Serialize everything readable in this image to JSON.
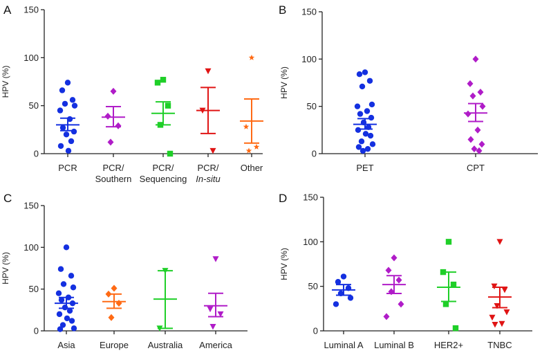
{
  "chart_data": [
    {
      "panel": "A",
      "type": "scatter",
      "ylabel": "HPV (%)",
      "ylim": [
        0,
        150
      ],
      "yticks": [
        0,
        50,
        100,
        150
      ],
      "groups": [
        {
          "label": [
            "PCR"
          ],
          "color": "#1430e0",
          "marker": "circle",
          "points": [
            74,
            66,
            56,
            52,
            50,
            45,
            36,
            27,
            23,
            20,
            13,
            8,
            3
          ],
          "mean": 30,
          "error": [
            24,
            37
          ]
        },
        {
          "label": [
            "PCR/",
            "Southern"
          ],
          "color": "#b01cc8",
          "marker": "diamond",
          "points": [
            65,
            39,
            29,
            12
          ],
          "mean": 38,
          "error": [
            28,
            49
          ]
        },
        {
          "label": [
            "PCR/",
            "Sequencing"
          ],
          "color": "#1fcf28",
          "marker": "square",
          "points": [
            77,
            74,
            50,
            30,
            0
          ],
          "mean": 42,
          "error": [
            30,
            54
          ]
        },
        {
          "label": [
            "PCR/",
            "In-situ"
          ],
          "italicLabelLine": 1,
          "color": "#e01414",
          "marker": "tri-down",
          "points": [
            86,
            45,
            3
          ],
          "mean": 45,
          "error": [
            21,
            69
          ]
        },
        {
          "label": [
            "Other"
          ],
          "color": "#ff6a14",
          "marker": "star",
          "points": [
            100,
            28,
            7,
            3
          ],
          "mean": 34,
          "error": [
            11,
            57
          ]
        }
      ]
    },
    {
      "panel": "B",
      "type": "scatter",
      "ylabel": "HPV (%)",
      "ylim": [
        0,
        150
      ],
      "yticks": [
        0,
        50,
        100,
        150
      ],
      "groups": [
        {
          "label": [
            "PET"
          ],
          "color": "#1430e0",
          "marker": "circle",
          "points": [
            86,
            84,
            77,
            71,
            52,
            50,
            45,
            42,
            38,
            33,
            28,
            25,
            21,
            19,
            13,
            10,
            7,
            5,
            3
          ],
          "mean": 31,
          "error": [
            26,
            37
          ]
        },
        {
          "label": [
            "CPT"
          ],
          "color": "#b01cc8",
          "marker": "diamond",
          "points": [
            100,
            74,
            65,
            61,
            50,
            42,
            25,
            15,
            10,
            5,
            3
          ],
          "mean": 43,
          "error": [
            34,
            53
          ]
        }
      ]
    },
    {
      "panel": "C",
      "type": "scatter",
      "ylabel": "HPV (%)",
      "ylim": [
        0,
        150
      ],
      "yticks": [
        0,
        50,
        100,
        150
      ],
      "groups": [
        {
          "label": [
            "Asia"
          ],
          "color": "#1430e0",
          "marker": "circle",
          "points": [
            100,
            74,
            66,
            56,
            52,
            45,
            40,
            37,
            33,
            28,
            24,
            20,
            15,
            12,
            7,
            3,
            2
          ],
          "mean": 33,
          "error": [
            27,
            40
          ]
        },
        {
          "label": [
            "Europe"
          ],
          "color": "#ff6a14",
          "marker": "diamond",
          "points": [
            51,
            44,
            33,
            16
          ],
          "mean": 35,
          "error": [
            27,
            44
          ]
        },
        {
          "label": [
            "Australia"
          ],
          "color": "#1fcf28",
          "marker": "tri-down",
          "points": [
            72,
            3
          ],
          "mean": 38,
          "error": [
            3,
            72
          ]
        },
        {
          "label": [
            "America"
          ],
          "color": "#b01cc8",
          "marker": "tri-down",
          "points": [
            86,
            26,
            20,
            5
          ],
          "mean": 30,
          "error": [
            17,
            45
          ]
        }
      ]
    },
    {
      "panel": "D",
      "type": "scatter",
      "ylabel": "HPV (%)",
      "ylim": [
        0,
        150
      ],
      "yticks": [
        0,
        50,
        100,
        150
      ],
      "groups": [
        {
          "label": [
            "Luminal A"
          ],
          "color": "#1430e0",
          "marker": "circle",
          "points": [
            61,
            55,
            48,
            42,
            37,
            30
          ],
          "mean": 46,
          "error": [
            40,
            52
          ]
        },
        {
          "label": [
            "Luminal B"
          ],
          "color": "#b01cc8",
          "marker": "diamond",
          "points": [
            82,
            68,
            57,
            44,
            30,
            16
          ],
          "mean": 52,
          "error": [
            42,
            62
          ]
        },
        {
          "label": [
            "HER2+"
          ],
          "color": "#1fcf28",
          "marker": "square",
          "points": [
            100,
            66,
            52,
            30,
            3
          ],
          "mean": 49,
          "error": [
            33,
            66
          ]
        },
        {
          "label": [
            "TNBC"
          ],
          "color": "#e01414",
          "marker": "tri-down",
          "points": [
            100,
            50,
            46,
            28,
            21,
            15,
            8,
            7
          ],
          "mean": 38,
          "error": [
            26,
            49
          ]
        }
      ]
    }
  ]
}
